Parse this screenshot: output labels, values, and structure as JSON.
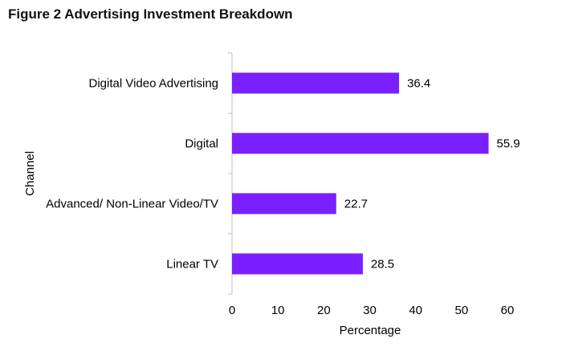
{
  "chart_data": {
    "type": "bar",
    "orientation": "horizontal",
    "title": "Figure 2 Advertising Investment Breakdown",
    "xlabel": "Percentage",
    "ylabel": "Channel",
    "categories": [
      "Digital Video Advertising",
      "Digital",
      "Advanced/ Non-Linear Video/TV",
      "Linear TV"
    ],
    "values": [
      36.4,
      55.9,
      22.7,
      28.5
    ],
    "value_labels": [
      "36.4",
      "55.9",
      "22.7",
      "28.5"
    ],
    "xlim": [
      0,
      60
    ],
    "xticks": [
      0,
      10,
      20,
      30,
      40,
      50,
      60
    ],
    "xtick_labels": [
      "0",
      "10",
      "20",
      "30",
      "40",
      "50",
      "60"
    ],
    "bar_color": "#7a1fff",
    "grid": false,
    "legend": "none"
  }
}
